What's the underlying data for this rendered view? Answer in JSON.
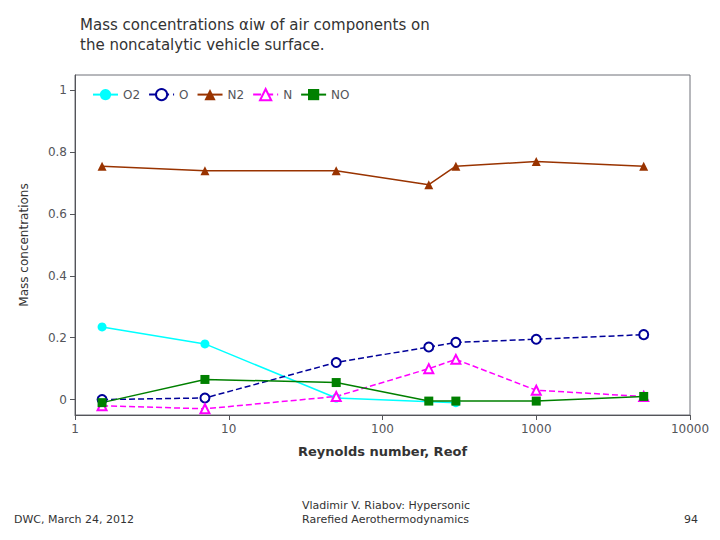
{
  "chart_data": {
    "type": "line",
    "title": "Mass concentrations αiw of air components on\nthe noncatalytic vehicle surface.",
    "xlabel": "Reynolds number, Reof",
    "ylabel": "Mass concentrations",
    "log": "x",
    "xlim": [
      1,
      10000
    ],
    "xticks": [
      1,
      10,
      100,
      1000,
      10000
    ],
    "ylim": [
      -0.05,
      1.05
    ],
    "yticks": [
      0,
      0.2,
      0.4,
      0.6,
      0.8,
      1
    ],
    "grid": false,
    "legend": "upper left",
    "series": [
      {
        "name": "O2",
        "color": "cyan",
        "marker": "circle",
        "line_style": "solid",
        "x": [
          1.5,
          7,
          50,
          300
        ],
        "values": [
          0.235,
          0.18,
          0.005,
          -0.01
        ]
      },
      {
        "name": "O",
        "color": "#000099",
        "marker": "hollow circle",
        "line_style": "dashed",
        "x": [
          1.5,
          7,
          50,
          200,
          300,
          1000,
          5000
        ],
        "values": [
          0.0,
          0.005,
          0.12,
          0.17,
          0.185,
          0.195,
          0.21
        ]
      },
      {
        "name": "N2",
        "color": "#993300",
        "marker": "triangle",
        "line_style": "solid",
        "x": [
          1.5,
          7,
          50,
          200,
          300,
          1000,
          5000
        ],
        "values": [
          0.755,
          0.74,
          0.74,
          0.695,
          0.755,
          0.77,
          0.755
        ]
      },
      {
        "name": "N",
        "color": "magenta",
        "marker": "hollow triangle",
        "line_style": "dashed",
        "x": [
          1.5,
          7,
          50,
          200,
          300,
          1000,
          5000
        ],
        "values": [
          -0.02,
          -0.03,
          0.01,
          0.1,
          0.13,
          0.03,
          0.01
        ]
      },
      {
        "name": "NO",
        "color": "green",
        "marker": "square",
        "line_style": "solid",
        "x": [
          1.5,
          7,
          50,
          200,
          300,
          1000,
          5000
        ],
        "values": [
          -0.01,
          0.065,
          0.055,
          -0.005,
          -0.005,
          -0.005,
          0.01
        ]
      }
    ],
    "annotations": [
      "DWC, March 24, 2012",
      "Vladimir V. Riabov: Hypersonic\nRarefied Aerothermodynamics",
      "94"
    ]
  }
}
